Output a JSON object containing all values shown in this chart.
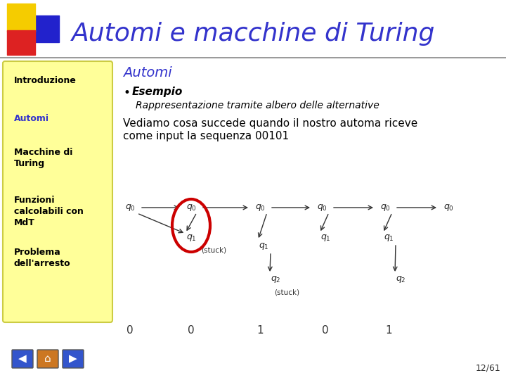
{
  "title": "Automi e macchine di Turing",
  "section_title": "Automi",
  "bullet_title": "Esempio",
  "bullet_sub": "Rappresentazione tramite albero delle alternative",
  "body_text1": "Vediamo cosa succede quando il nostro automa riceve",
  "body_text2": "come input la sequenza 00101",
  "nav_items": [
    "Introduzione",
    "Automi",
    "Macchine di\nTuring",
    "Funzioni\ncalcolabili con\nMdT",
    "Problema\ndell'arresto"
  ],
  "nav_active_idx": 1,
  "page_number": "12/61",
  "bg_color": "#ffffff",
  "sidebar_bg": "#ffff99",
  "sidebar_border": "#cccc44",
  "title_color": "#3333cc",
  "nav_active_color": "#3333cc",
  "nav_inactive_color": "#000000",
  "section_title_color": "#3333cc",
  "body_color": "#000000",
  "arrow_color": "#333333",
  "ellipse_color": "#cc0000",
  "sq_yellow": "#f5cc00",
  "sq_red": "#dd2222",
  "sq_blue": "#2222cc",
  "header_line_color": "#888888",
  "bottom_numbers": [
    "0",
    "0",
    "1",
    "0",
    "1"
  ],
  "btn_left_color": "#3355cc",
  "btn_home_color": "#cc7722",
  "btn_right_color": "#3355cc"
}
